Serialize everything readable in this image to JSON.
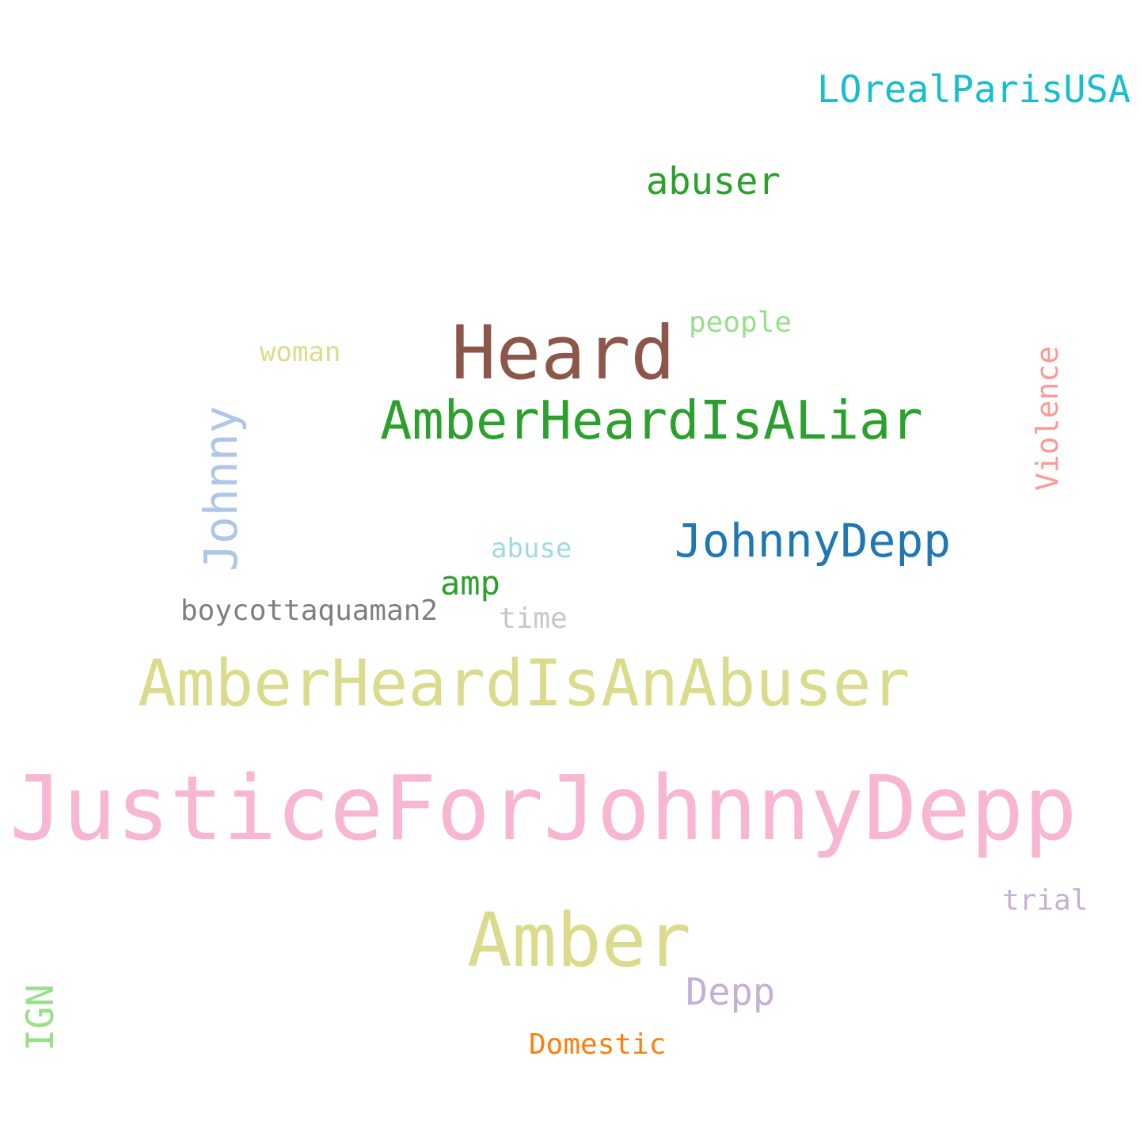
{
  "words": [
    {
      "id": "justicefor",
      "text": "JusticeForJohnnyDepp",
      "color": "#f7b6d2"
    },
    {
      "id": "amberheardisanabuser",
      "text": "AmberHeardIsAnAbuser",
      "color": "#dbdb8d"
    },
    {
      "id": "amber",
      "text": "Amber",
      "color": "#dbdb8d"
    },
    {
      "id": "heard",
      "text": "Heard",
      "color": "#8c564b"
    },
    {
      "id": "amberheardisaliar",
      "text": "AmberHeardIsALiar",
      "color": "#2ca02c"
    },
    {
      "id": "johnnydepp",
      "text": "JohnnyDepp",
      "color": "#1f77b4"
    },
    {
      "id": "johnny",
      "text": "Johnny",
      "color": "#aec7e8"
    },
    {
      "id": "lorealparisusa",
      "text": "LOrealParisUSA",
      "color": "#17becf"
    },
    {
      "id": "abuser",
      "text": "abuser",
      "color": "#2ca02c"
    },
    {
      "id": "violence",
      "text": "Violence",
      "color": "#ff9896"
    },
    {
      "id": "depp",
      "text": "Depp",
      "color": "#c5b0d5"
    },
    {
      "id": "ign",
      "text": "IGN",
      "color": "#98df8a"
    },
    {
      "id": "domestic",
      "text": "Domestic",
      "color": "#ff7f0e"
    },
    {
      "id": "boycottaquaman2",
      "text": "boycottaquaman2",
      "color": "#7f7f7f"
    },
    {
      "id": "amp",
      "text": "amp",
      "color": "#2ca02c"
    },
    {
      "id": "people",
      "text": "people",
      "color": "#98df8a"
    },
    {
      "id": "woman",
      "text": "woman",
      "color": "#dbdb8d"
    },
    {
      "id": "abuse",
      "text": "abuse",
      "color": "#9edae5"
    },
    {
      "id": "time",
      "text": "time",
      "color": "#c7c7c7"
    },
    {
      "id": "trial",
      "text": "trial",
      "color": "#c5b0d5"
    }
  ]
}
